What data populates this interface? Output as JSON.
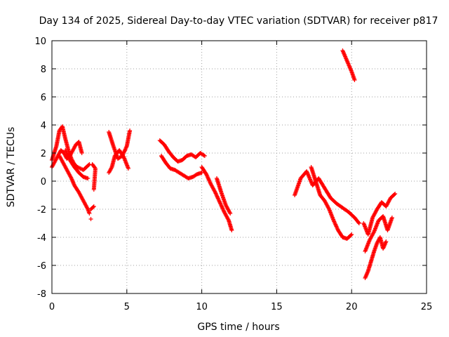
{
  "chart_data": {
    "type": "scatter",
    "title": "Day 134 of 2025, Sidereal Day-to-day VTEC variation (SDTVAR) for receiver p817",
    "xlabel": "GPS time / hours",
    "ylabel": "SDTVAR / TECUs",
    "xlim": [
      0,
      25
    ],
    "ylim": [
      -8,
      10
    ],
    "xticks": [
      "0",
      "5",
      "10",
      "15",
      "20",
      "25"
    ],
    "yticks": [
      "-8",
      "-6",
      "-4",
      "-2",
      "0",
      "2",
      "4",
      "6",
      "8",
      "10"
    ],
    "grid": true,
    "marker": "+",
    "series_color": "#ff0000",
    "segments": [
      {
        "x": [
          0.0,
          0.3,
          0.5,
          0.7,
          0.9,
          1.1,
          1.3,
          1.5,
          1.7,
          1.9,
          2.1,
          2.3,
          2.5
        ],
        "y": [
          1.5,
          2.5,
          3.6,
          3.9,
          3.0,
          2.2,
          1.6,
          1.2,
          1.0,
          0.9,
          0.8,
          1.0,
          1.2
        ]
      },
      {
        "x": [
          0.0,
          0.2,
          0.4,
          0.6,
          0.8,
          1.0,
          1.2,
          1.4,
          1.6,
          1.8,
          2.0
        ],
        "y": [
          1.0,
          1.4,
          1.8,
          2.2,
          2.0,
          1.6,
          1.8,
          2.2,
          2.6,
          2.8,
          2.0
        ]
      },
      {
        "x": [
          0.5,
          0.8,
          1.0,
          1.3,
          1.5,
          1.8,
          2.0,
          2.2,
          2.4,
          2.5
        ],
        "y": [
          1.8,
          1.2,
          0.8,
          0.2,
          -0.3,
          -0.8,
          -1.2,
          -1.6,
          -2.0,
          -2.3
        ]
      },
      {
        "x": [
          0.9,
          1.2,
          1.5,
          1.8,
          2.1,
          2.4
        ],
        "y": [
          2.2,
          1.5,
          1.0,
          0.6,
          0.3,
          0.2
        ]
      },
      {
        "x": [
          2.6,
          2.8
        ],
        "y": [
          -2.0,
          -1.8
        ]
      },
      {
        "x": [
          2.6
        ],
        "y": [
          -2.7
        ]
      },
      {
        "x": [
          2.7,
          2.9,
          2.8
        ],
        "y": [
          1.2,
          0.9,
          -0.6
        ]
      },
      {
        "x": [
          3.8,
          4.1,
          4.4,
          4.7,
          5.0,
          5.2
        ],
        "y": [
          3.5,
          2.5,
          1.6,
          1.8,
          2.5,
          3.6
        ]
      },
      {
        "x": [
          3.8,
          4.0,
          4.2,
          4.5,
          4.8,
          5.1
        ],
        "y": [
          0.6,
          1.0,
          1.8,
          2.2,
          1.7,
          0.9
        ]
      },
      {
        "x": [
          7.2,
          7.5,
          7.8,
          8.1,
          8.4,
          8.7,
          9.0,
          9.3,
          9.6,
          9.9,
          10.2
        ],
        "y": [
          2.9,
          2.6,
          2.1,
          1.7,
          1.4,
          1.5,
          1.8,
          1.9,
          1.7,
          2.0,
          1.8
        ]
      },
      {
        "x": [
          7.3,
          7.6,
          7.9,
          8.2,
          8.5,
          8.8,
          9.1,
          9.4,
          9.7,
          10.0
        ],
        "y": [
          1.8,
          1.3,
          0.9,
          0.8,
          0.6,
          0.4,
          0.2,
          0.3,
          0.5,
          0.6
        ]
      },
      {
        "x": [
          10.0,
          10.3,
          10.6,
          10.9,
          11.2,
          11.5,
          11.8,
          12.0
        ],
        "y": [
          1.0,
          0.5,
          -0.2,
          -0.8,
          -1.5,
          -2.2,
          -2.8,
          -3.5
        ]
      },
      {
        "x": [
          11.0,
          11.3,
          11.6,
          11.9
        ],
        "y": [
          0.2,
          -0.8,
          -1.7,
          -2.3
        ]
      },
      {
        "x": [
          16.2,
          16.6,
          17.0,
          17.4,
          17.8,
          18.2,
          18.6,
          19.0,
          19.4,
          19.8,
          20.2,
          20.5
        ],
        "y": [
          -1.0,
          0.2,
          0.7,
          -0.3,
          0.2,
          -0.5,
          -1.2,
          -1.6,
          -1.9,
          -2.2,
          -2.6,
          -3.0
        ]
      },
      {
        "x": [
          17.3,
          17.6,
          17.9,
          18.2,
          18.5,
          18.8,
          19.1,
          19.4,
          19.7,
          20.0
        ],
        "y": [
          1.0,
          0.0,
          -1.0,
          -1.4,
          -2.0,
          -2.8,
          -3.5,
          -4.0,
          -4.1,
          -3.8
        ]
      },
      {
        "x": [
          19.4,
          19.6,
          19.8,
          20.0,
          20.2
        ],
        "y": [
          9.3,
          8.8,
          8.3,
          7.8,
          7.2
        ]
      },
      {
        "x": [
          20.8,
          21.1,
          21.4,
          21.7,
          22.0,
          22.3,
          22.6,
          22.9
        ],
        "y": [
          -3.0,
          -3.8,
          -2.6,
          -2.0,
          -1.5,
          -1.8,
          -1.2,
          -0.9
        ]
      },
      {
        "x": [
          20.9,
          21.2,
          21.5,
          21.8,
          22.1,
          22.4,
          22.7
        ],
        "y": [
          -5.0,
          -4.2,
          -3.6,
          -2.8,
          -2.5,
          -3.5,
          -2.6
        ]
      },
      {
        "x": [
          20.9,
          21.1,
          21.3,
          21.5,
          21.7,
          21.9,
          22.1,
          22.3
        ],
        "y": [
          -6.9,
          -6.4,
          -5.7,
          -5.0,
          -4.4,
          -4.0,
          -4.8,
          -4.3
        ]
      }
    ]
  }
}
